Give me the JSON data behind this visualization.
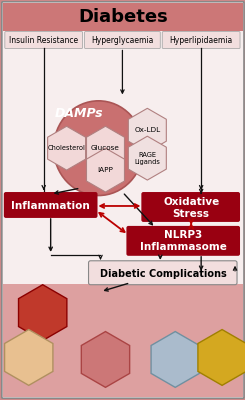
{
  "title": "Diabetes",
  "title_bg": "#cc7777",
  "title_fontsize": 13,
  "subtitle_boxes": [
    "Insulin Resistance",
    "Hyperglycaemia",
    "Hyperlipidaemia"
  ],
  "subtitle_bg": "#f2dede",
  "subtitle_fontsize": 5.5,
  "damps_label": "DAMPs",
  "damps_color": "#c97070",
  "damps_light": "#e8a0a0",
  "hex_inner_color": "#f2d8d8",
  "hex_outer_color": "#f0e0e0",
  "hex_edge": "#b08080",
  "inflammation_label": "Inflammation",
  "inflammation_bg": "#990011",
  "oxidative_label": "Oxidative\nStress",
  "oxidative_bg": "#990011",
  "nlrp3_label": "NLRP3\nInflammasome",
  "nlrp3_bg": "#990011",
  "complications_label": "Diabetic Complications",
  "complications_bg": "#f2dede",
  "bg_color": "#cc8888",
  "inner_bg": "#f7eeee",
  "white_text_fontsize": 7.5,
  "comp_fontsize": 7.0,
  "red_arrow_color": "#bb0000",
  "black_arrow_color": "#111111"
}
